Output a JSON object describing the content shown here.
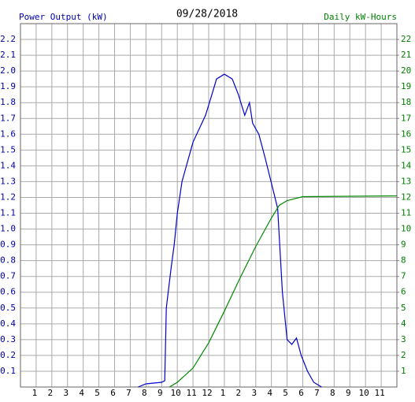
{
  "chart_data": {
    "type": "line",
    "title": "09/28/2018",
    "y_label": "Power Output (kW)",
    "y2_label": "Daily kW-Hours",
    "grid": true,
    "xlim": [
      0,
      24
    ],
    "xticks": [
      1,
      2,
      3,
      4,
      5,
      6,
      7,
      8,
      9,
      10,
      11,
      12,
      {
        "value": 13,
        "label": "1"
      },
      {
        "value": 14,
        "label": "2"
      },
      {
        "value": 15,
        "label": "3"
      },
      {
        "value": 16,
        "label": "4"
      },
      {
        "value": 17,
        "label": "5"
      },
      {
        "value": 18,
        "label": "6"
      },
      {
        "value": 19,
        "label": "7"
      },
      {
        "value": 20,
        "label": "8"
      },
      {
        "value": 21,
        "label": "9"
      },
      {
        "value": 22,
        "label": "10"
      },
      {
        "value": 23,
        "label": "11"
      }
    ],
    "ylim": [
      0,
      2.3
    ],
    "yticks": [
      0.1,
      0.2,
      0.3,
      0.4,
      0.5,
      0.6,
      0.7,
      0.8,
      0.9,
      {
        "value": 1,
        "label": "1.0"
      },
      1.1,
      1.2,
      1.3,
      1.4,
      1.5,
      1.6,
      1.7,
      1.8,
      1.9,
      {
        "value": 2,
        "label": "2.0"
      },
      2.1,
      2.2
    ],
    "y2lim": [
      0,
      23
    ],
    "y2ticks": [
      1,
      2,
      3,
      4,
      5,
      6,
      7,
      8,
      9,
      10,
      11,
      12,
      13,
      14,
      15,
      16,
      17,
      18,
      19,
      20,
      21,
      22
    ],
    "y_color": "#0000aa",
    "y2_color": "#008000",
    "series": [
      {
        "name": "Power Output (kW)",
        "color": "#0000cc",
        "axis": "y",
        "x": [
          7.5,
          8,
          9,
          9.2,
          9.3,
          9.6,
          9.8,
          10,
          10.3,
          11,
          11.8,
          12.2,
          12.5,
          13,
          13.5,
          13.9,
          14.3,
          14.6,
          14.8,
          15.2,
          15.6,
          16.1,
          16.4,
          16.7,
          17,
          17.3,
          17.6,
          17.9,
          18.3,
          18.7,
          19.2
        ],
        "values": [
          0,
          0.02,
          0.03,
          0.04,
          0.5,
          0.75,
          0.9,
          1.1,
          1.3,
          1.55,
          1.72,
          1.85,
          1.95,
          1.98,
          1.95,
          1.85,
          1.72,
          1.8,
          1.67,
          1.6,
          1.45,
          1.25,
          1.13,
          0.6,
          0.3,
          0.27,
          0.31,
          0.2,
          0.1,
          0.03,
          0
        ]
      },
      {
        "name": "Daily kW-Hours",
        "color": "#008800",
        "axis": "y2",
        "x": [
          9.5,
          10,
          11,
          12,
          13,
          14,
          15,
          16,
          16.5,
          17,
          18,
          24
        ],
        "values": [
          0,
          0.3,
          1.2,
          2.8,
          4.8,
          6.9,
          8.9,
          10.7,
          11.5,
          11.8,
          12.05,
          12.1
        ]
      }
    ]
  }
}
